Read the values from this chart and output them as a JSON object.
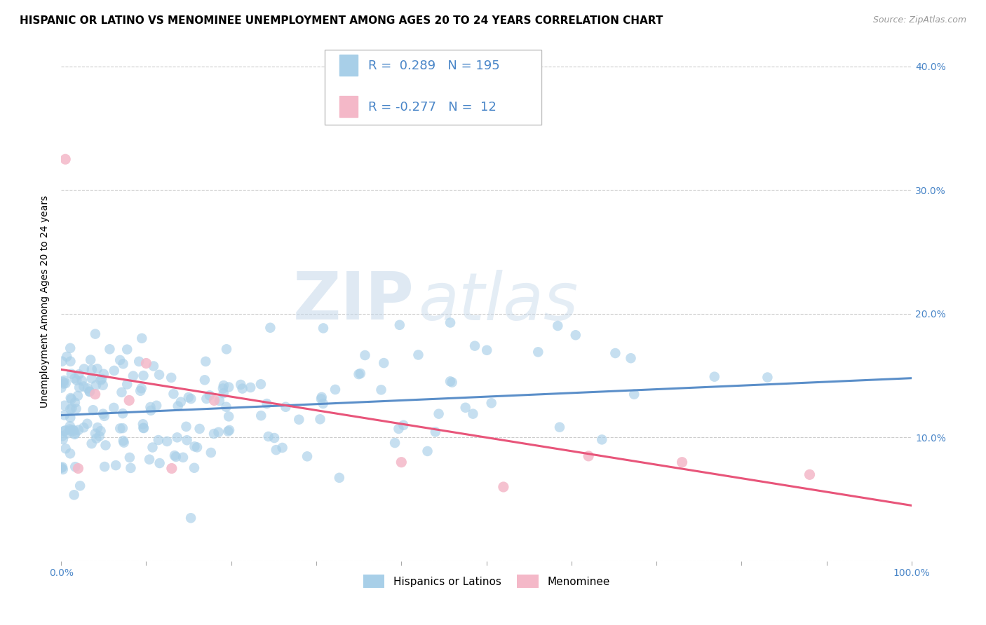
{
  "title": "HISPANIC OR LATINO VS MENOMINEE UNEMPLOYMENT AMONG AGES 20 TO 24 YEARS CORRELATION CHART",
  "source": "Source: ZipAtlas.com",
  "ylabel": "Unemployment Among Ages 20 to 24 years",
  "xlim": [
    0,
    1.0
  ],
  "ylim": [
    0,
    0.42
  ],
  "xticks": [
    0.0,
    0.1,
    0.2,
    0.3,
    0.4,
    0.5,
    0.6,
    0.7,
    0.8,
    0.9,
    1.0
  ],
  "xticklabels": [
    "0.0%",
    "",
    "",
    "",
    "",
    "",
    "",
    "",
    "",
    "",
    "100.0%"
  ],
  "yticks": [
    0.0,
    0.1,
    0.2,
    0.3,
    0.4
  ],
  "yticklabels_right": [
    "",
    "10.0%",
    "20.0%",
    "30.0%",
    "40.0%"
  ],
  "blue_color": "#a8cfe8",
  "pink_color": "#f4b8c8",
  "blue_line_color": "#5b8fc9",
  "pink_line_color": "#e8557a",
  "text_color": "#4a86c8",
  "R_blue": 0.289,
  "N_blue": 195,
  "R_pink": -0.277,
  "N_pink": 12,
  "legend_label_blue": "Hispanics or Latinos",
  "legend_label_pink": "Menominee",
  "blue_trend_y_start": 0.118,
  "blue_trend_y_end": 0.148,
  "pink_trend_y_start": 0.155,
  "pink_trend_y_end": 0.045,
  "watermark_zip": "ZIP",
  "watermark_atlas": "atlas",
  "fig_bg": "#ffffff",
  "grid_color": "#cccccc",
  "title_fontsize": 11,
  "axis_label_fontsize": 10,
  "tick_fontsize": 10,
  "legend_fontsize": 13
}
